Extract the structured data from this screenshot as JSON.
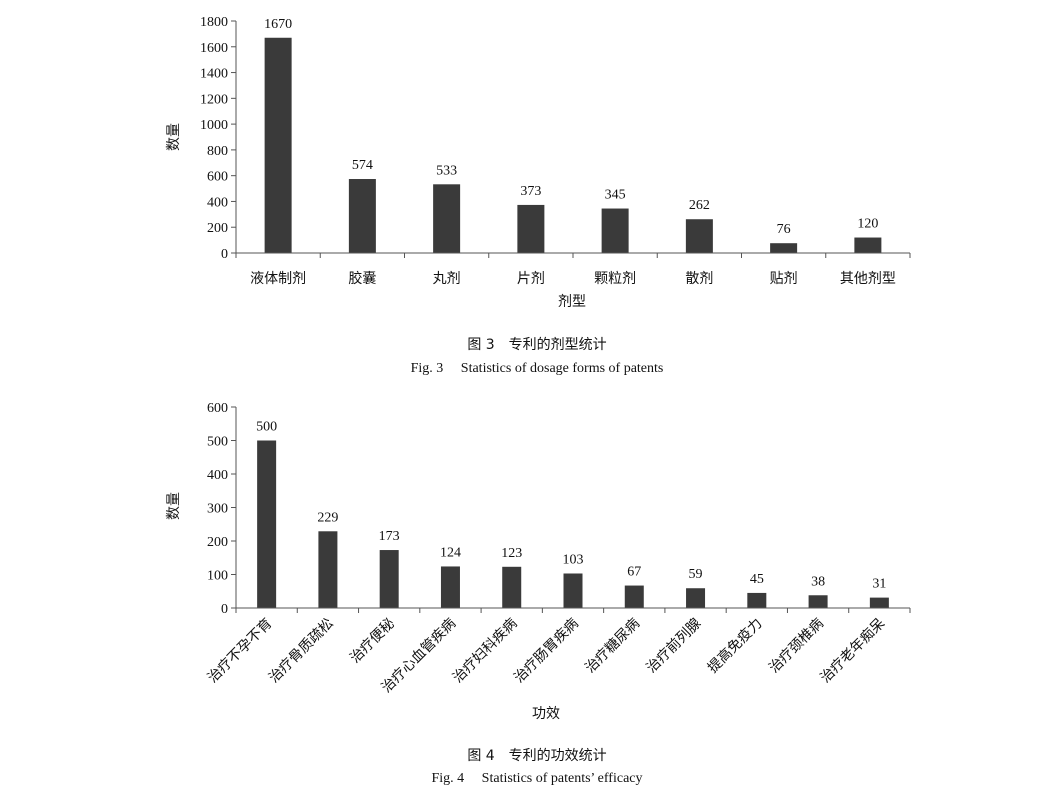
{
  "chart_data": [
    {
      "type": "bar",
      "categories": [
        "液体制剂",
        "胶囊",
        "丸剂",
        "片剂",
        "颗粒剂",
        "散剂",
        "贴剂",
        "其他剂型"
      ],
      "values": [
        1670,
        574,
        533,
        373,
        345,
        262,
        76,
        120
      ],
      "xlabel": "剂型",
      "ylabel": "数量",
      "ylim": [
        0,
        1800
      ],
      "yticks": [
        0,
        200,
        400,
        600,
        800,
        1000,
        1200,
        1400,
        1600,
        1800
      ],
      "bar_color": "#3a3a3a",
      "grid": false,
      "data_labels": true,
      "caption_cn": "图 3　专利的剂型统计",
      "caption_en": "Fig. 3　 Statistics of dosage forms of patents"
    },
    {
      "type": "bar",
      "categories": [
        "治疗不孕不育",
        "治疗骨质疏松",
        "治疗便秘",
        "治疗心血管疾病",
        "治疗妇科疾病",
        "治疗肠胃疾病",
        "治疗糖尿病",
        "治疗前列腺",
        "提高免疫力",
        "治疗颈椎病",
        "治疗老年痴呆"
      ],
      "values": [
        500,
        229,
        173,
        124,
        123,
        103,
        67,
        59,
        45,
        38,
        31
      ],
      "xlabel": "功效",
      "ylabel": "数量",
      "ylim": [
        0,
        600
      ],
      "yticks": [
        0,
        100,
        200,
        300,
        400,
        500,
        600
      ],
      "bar_color": "#3a3a3a",
      "grid": false,
      "data_labels": true,
      "category_label_rotation": -45,
      "caption_cn": "图 4　专利的功效统计",
      "caption_en": "Fig. 4　 Statistics of patents’ efficacy"
    }
  ]
}
